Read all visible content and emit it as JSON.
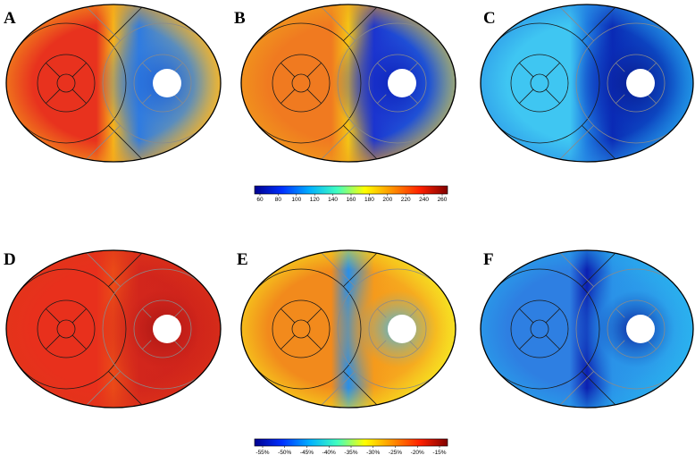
{
  "panels": [
    {
      "label": "A",
      "colors": {
        "left": "#e8321e",
        "mid": "#f6b21a",
        "right": "#2f7be0",
        "dark": "#1b5fd8",
        "rim_right": "#ffd23a",
        "outer": "#f4a41c"
      }
    },
    {
      "label": "B",
      "colors": {
        "left": "#f07a20",
        "mid": "#f4c416",
        "right": "#1b34cf",
        "dark": "#0b20b8",
        "rim_right": "#2fb6ee",
        "outer": "#f0a21c"
      }
    },
    {
      "label": "C",
      "colors": {
        "left": "#3fc6f2",
        "mid": "#1f7be0",
        "right": "#0a2ab5",
        "dark": "#081c8c",
        "rim_right": "#16a6ea",
        "outer": "#2a8fe6"
      }
    },
    {
      "label": "D",
      "colors": {
        "left": "#e8301c",
        "mid": "#ea4a18",
        "right": "#d2261c",
        "dark": "#a81614",
        "rim_right": "#c81e18",
        "outer": "#e0361a"
      }
    },
    {
      "label": "E",
      "colors": {
        "left": "#f28a1c",
        "mid": "#2a8fe6",
        "right": "#f59a1c",
        "dark": "#3fb8ee",
        "rim_right": "#f8e82a",
        "outer": "#f6e41c"
      }
    },
    {
      "label": "F",
      "colors": {
        "left": "#2e7fe2",
        "mid": "#0b20b0",
        "right": "#2a92e8",
        "dark": "#081a9a",
        "rim_right": "#30c4f2",
        "outer": "#27a7ec"
      }
    }
  ],
  "colorbars": [
    {
      "ticks": [
        "60",
        "80",
        "100",
        "120",
        "140",
        "160",
        "180",
        "200",
        "220",
        "240",
        "260"
      ],
      "stops": [
        "#00008f",
        "#0030ff",
        "#00b0ff",
        "#40ffc0",
        "#ffff00",
        "#ff9000",
        "#ff2000",
        "#800000"
      ]
    },
    {
      "ticks": [
        "-55%",
        "-50%",
        "-45%",
        "-40%",
        "-35%",
        "-30%",
        "-25%",
        "-20%",
        "-15%"
      ],
      "stops": [
        "#00008f",
        "#0030ff",
        "#00b0ff",
        "#40ffc0",
        "#ffff00",
        "#ff9000",
        "#ff2000",
        "#800000"
      ]
    }
  ]
}
